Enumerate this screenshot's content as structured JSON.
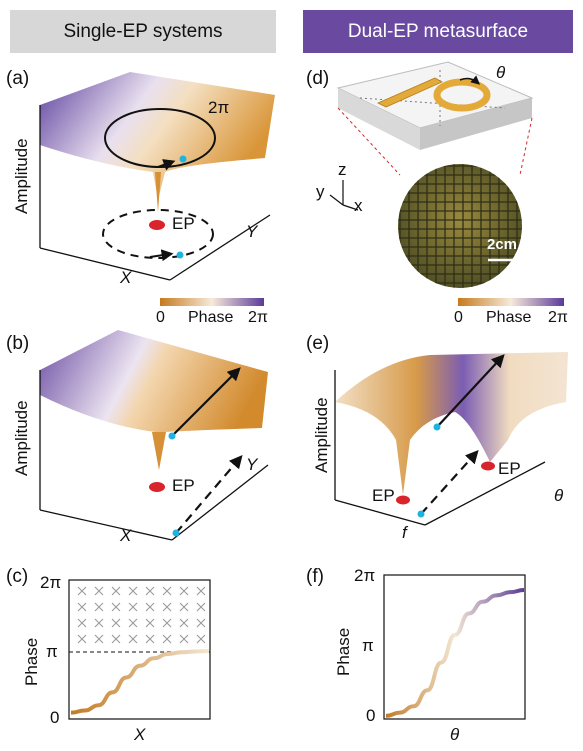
{
  "headers": {
    "left": "Single-EP systems",
    "right": "Dual-EP  metasurface"
  },
  "panels": {
    "a": {
      "label": "(a)",
      "ylabel": "Amplitude",
      "xlabel": "X",
      "zlabel": "Y",
      "loop_label": "2π",
      "point_label": "EP"
    },
    "b": {
      "label": "(b)",
      "ylabel": "Amplitude",
      "xlabel": "X",
      "zlabel": "Y",
      "point_label": "EP"
    },
    "c": {
      "label": "(c)",
      "ylabel": "Phase",
      "xlabel": "X"
    },
    "d": {
      "label": "(d)",
      "angle_label": "θ",
      "axis_z": "z",
      "axis_y": "y",
      "axis_x": "x",
      "scale_label": "2cm"
    },
    "e": {
      "label": "(e)",
      "ylabel": "Amplitude",
      "xlabel": "f",
      "zlabel": "θ",
      "point_left": "EP",
      "point_right": "EP"
    },
    "f": {
      "label": "(f)",
      "ylabel": "Phase",
      "xlabel": "θ"
    }
  },
  "colorbar_left": {
    "min": "0",
    "title": "Phase",
    "max": "2π"
  },
  "colorbar_right": {
    "min": "0",
    "title": "Phase",
    "max": "2π"
  },
  "colors": {
    "purple": "#6a4aa0",
    "orange": "#c98a2e",
    "ep_red": "#d8242a",
    "cyan": "#1fb3e0"
  },
  "chart_data": [
    {
      "type": "line",
      "panel": "c",
      "xlabel": "X",
      "ylabel": "Phase",
      "ytick_labels": [
        "0",
        "π",
        "2π"
      ],
      "ylim": [
        0,
        6.283
      ],
      "x": [
        0,
        0.1,
        0.2,
        0.3,
        0.4,
        0.5,
        0.6,
        0.7,
        0.8,
        0.9,
        1.0
      ],
      "values": [
        0.25,
        0.35,
        0.6,
        1.2,
        1.9,
        2.45,
        2.8,
        3.0,
        3.08,
        3.12,
        3.14
      ],
      "annotations": [
        "forbidden region above π (shaded with crosses)"
      ]
    },
    {
      "type": "line",
      "panel": "f",
      "xlabel": "θ",
      "ylabel": "Phase",
      "ytick_labels": [
        "0",
        "π",
        "2π"
      ],
      "ylim": [
        0,
        6.283
      ],
      "x": [
        0,
        0.1,
        0.2,
        0.3,
        0.4,
        0.5,
        0.6,
        0.7,
        0.8,
        0.9,
        1.0
      ],
      "values": [
        0.1,
        0.25,
        0.55,
        1.3,
        2.6,
        3.9,
        4.9,
        5.45,
        5.75,
        5.9,
        6.0
      ]
    }
  ]
}
